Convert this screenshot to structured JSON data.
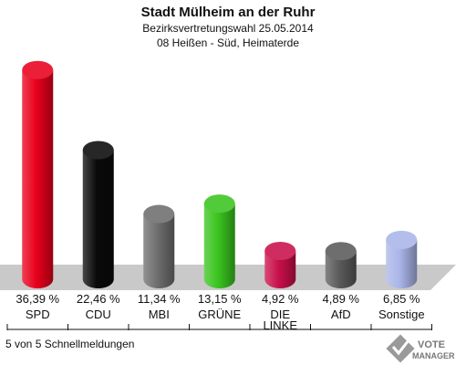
{
  "chart_data": {
    "type": "bar",
    "title": "Stadt Mülheim an der Ruhr",
    "subtitle_1": "Bezirksvertretungswahl 25.05.2014",
    "subtitle_2": "08 Heißen - Süd, Heimaterde",
    "categories": [
      "SPD",
      "CDU",
      "MBI",
      "GRÜNE",
      "DIE LINKE",
      "AfD",
      "Sonstige"
    ],
    "category_lines": [
      [
        "SPD"
      ],
      [
        "CDU"
      ],
      [
        "MBI"
      ],
      [
        "GRÜNE"
      ],
      [
        "DIE",
        "LINKE"
      ],
      [
        "AfD"
      ],
      [
        "Sonstige"
      ]
    ],
    "values": [
      36.39,
      22.46,
      11.34,
      13.15,
      4.92,
      4.89,
      6.85
    ],
    "value_labels": [
      "36,39 %",
      "22,46 %",
      "11,34 %",
      "13,15 %",
      "4,92 %",
      "4,89 %",
      "6,85 %"
    ],
    "colors": [
      "#e8001c",
      "#0a0a0a",
      "#6e6e6e",
      "#3ac41f",
      "#c8104a",
      "#5a5a5a",
      "#a9b5e8"
    ],
    "ylim": [
      0,
      40
    ],
    "grid": false
  },
  "footer_text": "5 von 5 Schnellmeldungen",
  "logo": {
    "line1": "VOTE",
    "line2": "MANAGER"
  }
}
